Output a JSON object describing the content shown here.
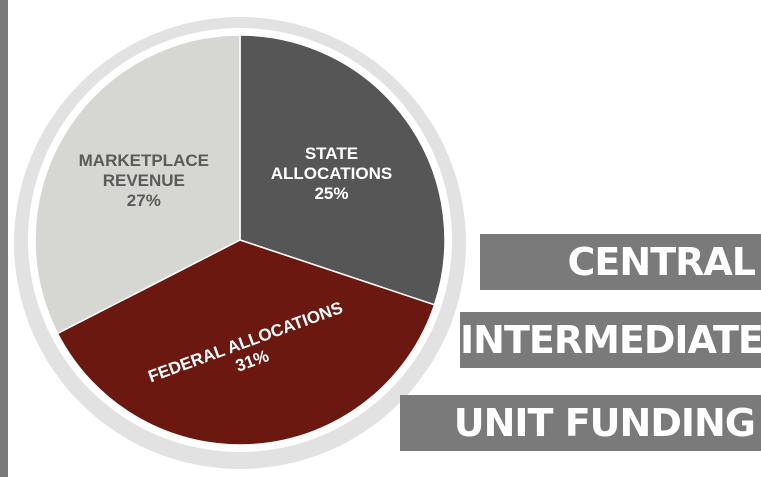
{
  "chart_data": {
    "type": "pie",
    "categories": [
      "STATE ALLOCATIONS",
      "FEDERAL ALLOCATIONS",
      "MARKETPLACE REVENUE"
    ],
    "values": [
      25,
      31,
      27
    ],
    "value_labels": [
      "25%",
      "31%",
      "27%"
    ],
    "colors": [
      "#565656",
      "#6b1910",
      "#d6d7d2"
    ]
  },
  "banners": [
    "CENTRAL",
    "INTERMEDIATE",
    "UNIT FUNDING"
  ]
}
